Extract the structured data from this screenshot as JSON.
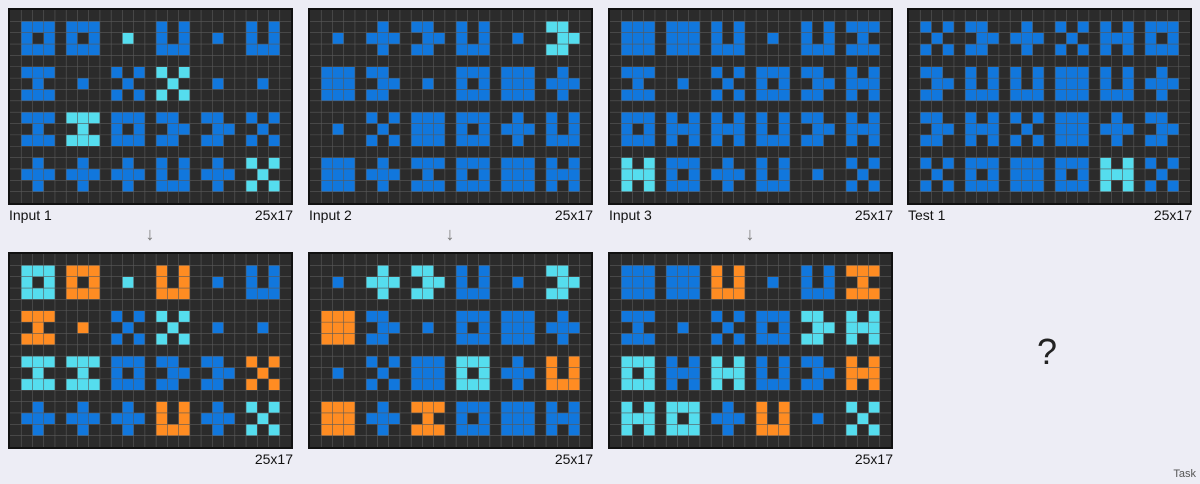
{
  "colors": {
    "background": "#2b2b2b",
    "gridline": "#5a5a5a",
    "blue": "#1177dd",
    "cyan": "#55ddee",
    "orange": "#ff8c22"
  },
  "panels": {
    "input1": {
      "label": "Input 1",
      "size": "25x17"
    },
    "output1": {
      "label": "",
      "size": "25x17"
    },
    "input2": {
      "label": "Input 2",
      "size": "25x17"
    },
    "output2": {
      "label": "",
      "size": "25x17"
    },
    "input3": {
      "label": "Input 3",
      "size": "25x17"
    },
    "output3": {
      "label": "",
      "size": "25x17"
    },
    "test1": {
      "label": "Test 1",
      "size": "25x17"
    }
  },
  "arrow_glyph": "↓",
  "question_mark": "?",
  "task_label": "Task"
}
